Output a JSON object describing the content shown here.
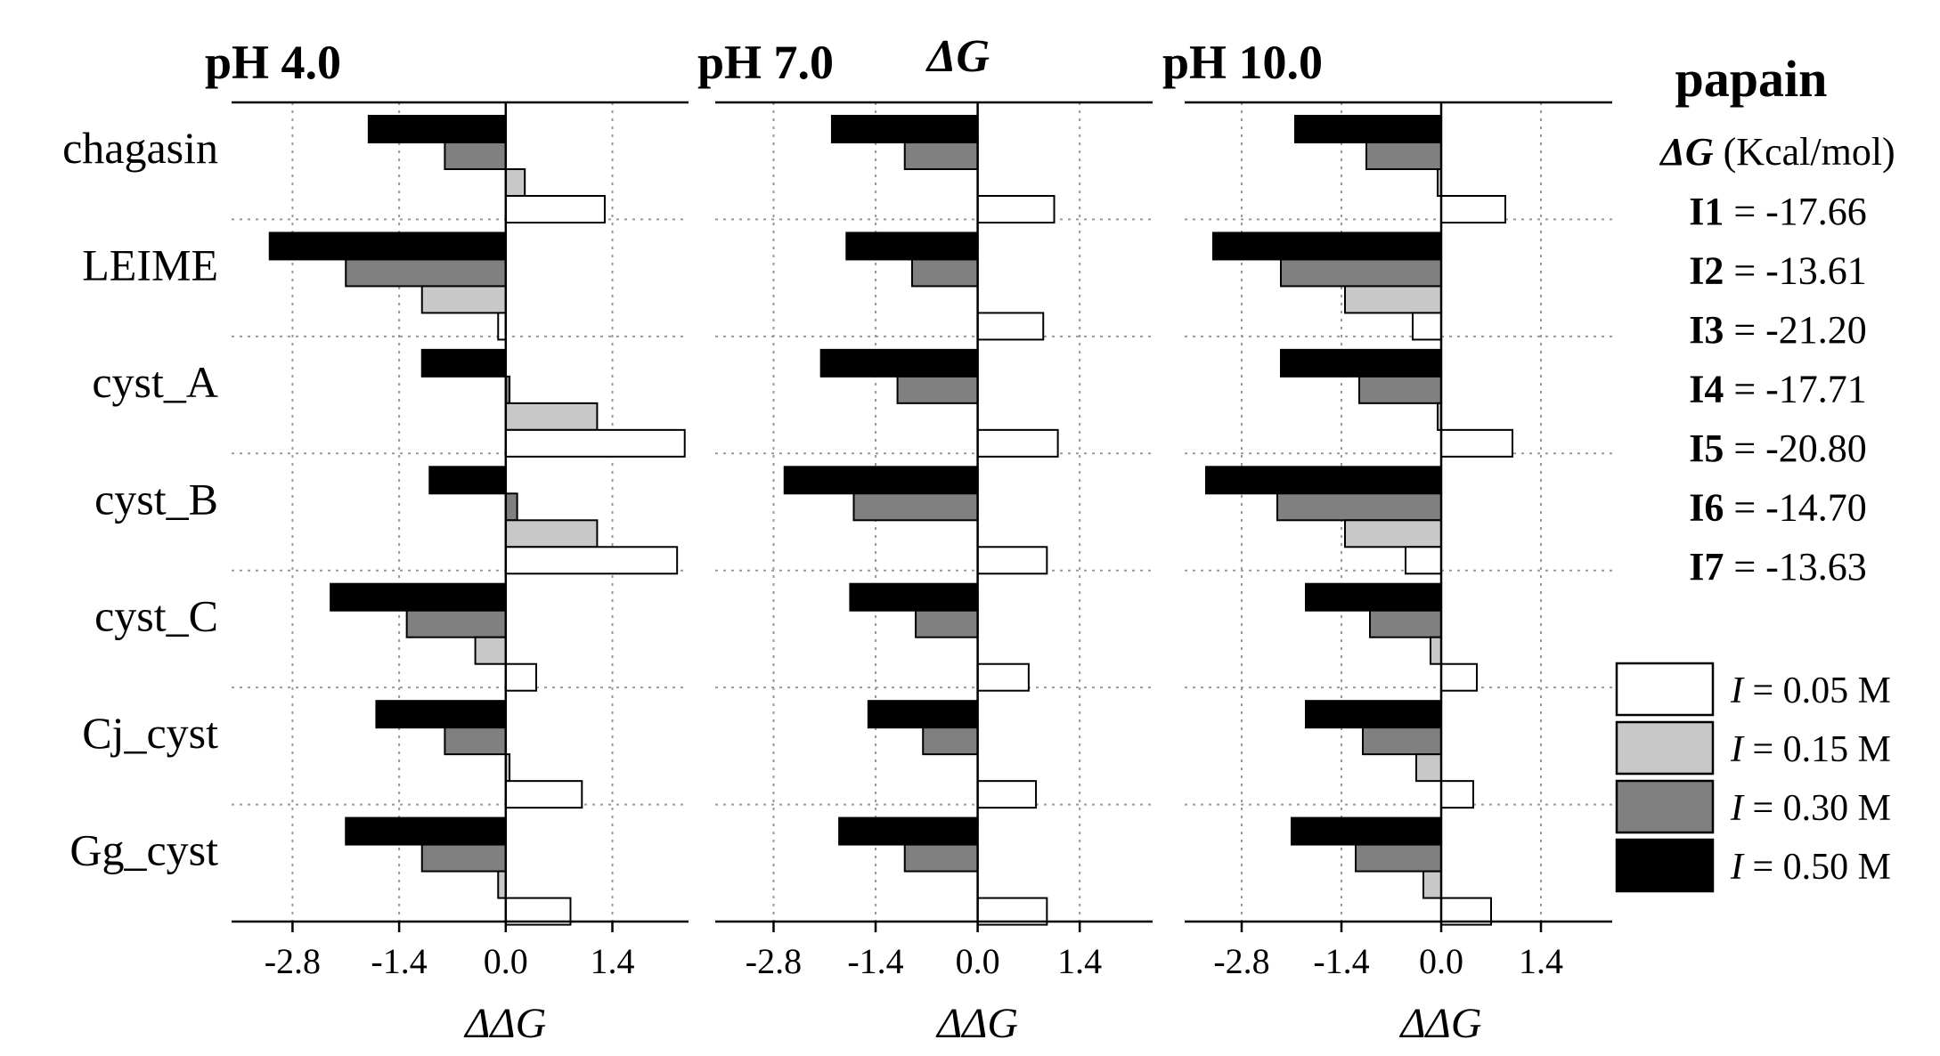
{
  "chart_data": {
    "type": "bar",
    "orientation": "horizontal",
    "top_label": "ΔG",
    "xlabel": "ΔΔG",
    "xlim": [
      -3.6,
      2.4
    ],
    "ticks": [
      "-2.8",
      "-1.4",
      "0.0",
      "1.4"
    ],
    "tick_values": [
      -2.8,
      -1.4,
      0.0,
      1.4
    ],
    "categories": [
      "chagasin",
      "LEIME",
      "cyst_A",
      "cyst_B",
      "cyst_C",
      "Cj_cyst",
      "Gg_cyst"
    ],
    "series_names": [
      "I = 0.50 M",
      "I = 0.30 M",
      "I = 0.15 M",
      "I = 0.05 M"
    ],
    "series_colors": [
      "#000000",
      "#808080",
      "#c8c8c8",
      "#ffffff"
    ],
    "panels": [
      {
        "title": "pH 4.0",
        "series": [
          {
            "name": "I = 0.50 M",
            "values": [
              -1.8,
              -3.1,
              -1.1,
              -1.0,
              -2.3,
              -1.7,
              -2.1
            ]
          },
          {
            "name": "I = 0.30 M",
            "values": [
              -0.8,
              -2.1,
              0.05,
              0.15,
              -1.3,
              -0.8,
              -1.1
            ]
          },
          {
            "name": "I = 0.15 M",
            "values": [
              0.25,
              -1.1,
              1.2,
              1.2,
              -0.4,
              0.05,
              -0.1
            ]
          },
          {
            "name": "I = 0.05 M",
            "values": [
              1.3,
              -0.1,
              2.35,
              2.25,
              0.4,
              1.0,
              0.85
            ]
          }
        ]
      },
      {
        "title": "pH 7.0",
        "series": [
          {
            "name": "I = 0.50 M",
            "values": [
              -2.0,
              -1.8,
              -2.15,
              -2.65,
              -1.75,
              -1.5,
              -1.9
            ]
          },
          {
            "name": "I = 0.30 M",
            "values": [
              -1.0,
              -0.9,
              -1.1,
              -1.7,
              -0.85,
              -0.75,
              -1.0
            ]
          },
          {
            "name": "I = 0.15 M",
            "values": [
              0.0,
              0.0,
              0.0,
              0.0,
              0.0,
              0.0,
              0.0
            ]
          },
          {
            "name": "I = 0.05 M",
            "values": [
              1.05,
              0.9,
              1.1,
              0.95,
              0.7,
              0.8,
              0.95
            ]
          }
        ]
      },
      {
        "title": "pH 10.0",
        "series": [
          {
            "name": "I = 0.50 M",
            "values": [
              -2.05,
              -3.2,
              -2.25,
              -3.3,
              -1.9,
              -1.9,
              -2.1
            ]
          },
          {
            "name": "I = 0.30 M",
            "values": [
              -1.05,
              -2.25,
              -1.15,
              -2.3,
              -1.0,
              -1.1,
              -1.2
            ]
          },
          {
            "name": "I = 0.15 M",
            "values": [
              -0.05,
              -1.35,
              -0.05,
              -1.35,
              -0.15,
              -0.35,
              -0.25
            ]
          },
          {
            "name": "I = 0.05 M",
            "values": [
              0.9,
              -0.4,
              1.0,
              -0.5,
              0.5,
              0.45,
              0.7
            ]
          }
        ]
      }
    ]
  },
  "side_panel": {
    "title": "papain",
    "unit_symbol": "ΔG",
    "unit": " (Kcal/mol)",
    "inhibitors": [
      {
        "name": "I1",
        "value": " = -17.66"
      },
      {
        "name": "I2",
        "value": " = -13.61"
      },
      {
        "name": "I3",
        "value": " = -21.20"
      },
      {
        "name": "I4",
        "value": " = -17.71"
      },
      {
        "name": "I5",
        "value": " = -20.80"
      },
      {
        "name": "I6",
        "value": " = -14.70"
      },
      {
        "name": "I7",
        "value": " = -13.63"
      }
    ]
  },
  "legend": [
    {
      "symbol": "I",
      "text": " = 0.05 M",
      "color": "#ffffff"
    },
    {
      "symbol": "I",
      "text": " = 0.15 M",
      "color": "#c8c8c8"
    },
    {
      "symbol": "I",
      "text": " = 0.30 M",
      "color": "#808080"
    },
    {
      "symbol": "I",
      "text": " = 0.50 M",
      "color": "#000000"
    }
  ]
}
